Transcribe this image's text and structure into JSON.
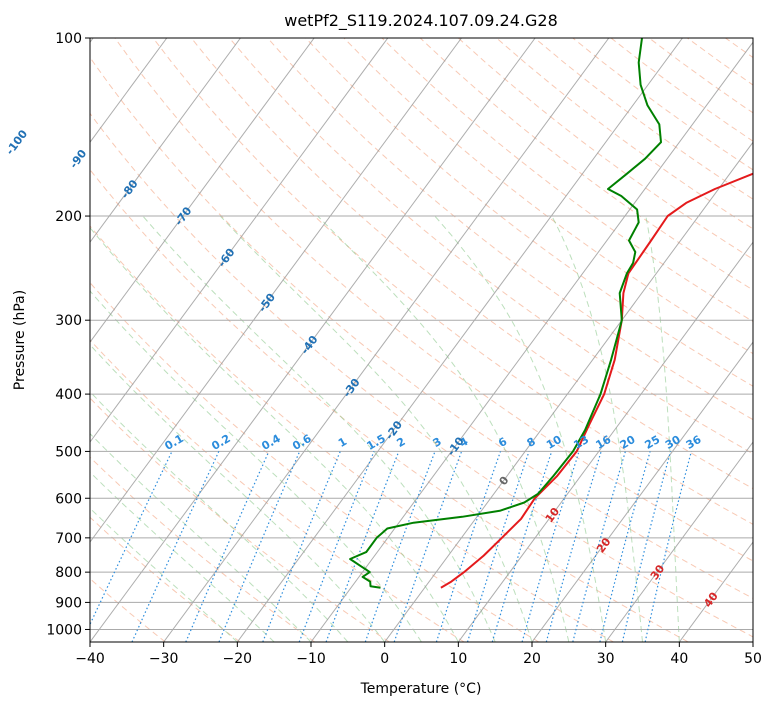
{
  "chart_data": {
    "type": "line",
    "subtype": "skew-t log-p",
    "title": "wetPf2_S119.2024.107.09.24.G28",
    "xlabel": "Temperature (°C)",
    "ylabel": "Pressure (hPa)",
    "xlim": [
      -40,
      50
    ],
    "ylim": [
      1050,
      100
    ],
    "y_scale": "log",
    "x_ticks": [
      -40,
      -30,
      -20,
      -10,
      0,
      10,
      20,
      30,
      40,
      50
    ],
    "y_ticks": [
      100,
      200,
      300,
      400,
      500,
      600,
      700,
      800,
      900,
      1000
    ],
    "grid": true,
    "colors": {
      "temperature": "#e41a1c",
      "dewpoint": "#008000",
      "isotherm": "#999999",
      "isobar": "#aaaaaa",
      "dry_adiabat": "#f4a582",
      "moist_adiabat": "#90c990",
      "mixing_ratio": "#2b8cdc",
      "isotherm_label_cold": "#2171b5",
      "isotherm_label_warm": "#d62728"
    },
    "isotherm_labels": [
      "-100",
      "-90",
      "-80",
      "-70",
      "-60",
      "-50",
      "-40",
      "-30",
      "-20",
      "-10",
      "0",
      "10",
      "20",
      "30",
      "40"
    ],
    "mixing_ratio_labels": [
      "0.1",
      "0.2",
      "0.4",
      "0.6",
      "1",
      "1.5",
      "2",
      "3",
      "4",
      "6",
      "8",
      "10",
      "13",
      "16",
      "20",
      "25",
      "30",
      "36"
    ],
    "series": [
      {
        "id": "temperature",
        "points": [
          {
            "p": 850,
            "t": 2.2
          },
          {
            "p": 830,
            "t": 3.0
          },
          {
            "p": 800,
            "t": 3.8
          },
          {
            "p": 750,
            "t": 4.8
          },
          {
            "p": 700,
            "t": 5.5
          },
          {
            "p": 650,
            "t": 6.2
          },
          {
            "p": 600,
            "t": 6.0
          },
          {
            "p": 550,
            "t": 6.8
          },
          {
            "p": 500,
            "t": 7.0
          },
          {
            "p": 450,
            "t": 6.0
          },
          {
            "p": 400,
            "t": 5.0
          },
          {
            "p": 350,
            "t": 3.0
          },
          {
            "p": 300,
            "t": 0.0
          },
          {
            "p": 270,
            "t": -2.5
          },
          {
            "p": 250,
            "t": -3.8
          },
          {
            "p": 220,
            "t": -4.0
          },
          {
            "p": 200,
            "t": -4.2
          },
          {
            "p": 190,
            "t": -3.0
          },
          {
            "p": 180,
            "t": -0.5
          },
          {
            "p": 170,
            "t": 3.0
          },
          {
            "p": 160,
            "t": 6.5
          },
          {
            "p": 150,
            "t": 9.0
          },
          {
            "p": 140,
            "t": 13.0
          },
          {
            "p": 130,
            "t": 18.5
          },
          {
            "p": 120,
            "t": 24.0
          },
          {
            "p": 110,
            "t": 28.0
          },
          {
            "p": 100,
            "t": 30.0
          }
        ]
      },
      {
        "id": "dewpoint",
        "points": [
          {
            "p": 850,
            "t": -6.0
          },
          {
            "p": 845,
            "t": -7.5
          },
          {
            "p": 830,
            "t": -8.0
          },
          {
            "p": 815,
            "t": -9.5
          },
          {
            "p": 800,
            "t": -9.0
          },
          {
            "p": 780,
            "t": -11.0
          },
          {
            "p": 760,
            "t": -13.0
          },
          {
            "p": 740,
            "t": -11.5
          },
          {
            "p": 700,
            "t": -11.5
          },
          {
            "p": 675,
            "t": -11.0
          },
          {
            "p": 660,
            "t": -8.0
          },
          {
            "p": 645,
            "t": -2.0
          },
          {
            "p": 630,
            "t": 2.5
          },
          {
            "p": 610,
            "t": 5.0
          },
          {
            "p": 590,
            "t": 6.0
          },
          {
            "p": 550,
            "t": 6.3
          },
          {
            "p": 500,
            "t": 6.5
          },
          {
            "p": 460,
            "t": 6.0
          },
          {
            "p": 400,
            "t": 4.5
          },
          {
            "p": 350,
            "t": 2.5
          },
          {
            "p": 300,
            "t": 0.0
          },
          {
            "p": 270,
            "t": -3.0
          },
          {
            "p": 250,
            "t": -4.0
          },
          {
            "p": 240,
            "t": -4.2
          },
          {
            "p": 230,
            "t": -5.0
          },
          {
            "p": 220,
            "t": -7.0
          },
          {
            "p": 205,
            "t": -7.5
          },
          {
            "p": 195,
            "t": -9.0
          },
          {
            "p": 185,
            "t": -12.5
          },
          {
            "p": 180,
            "t": -15.0
          },
          {
            "p": 170,
            "t": -14.0
          },
          {
            "p": 160,
            "t": -13.0
          },
          {
            "p": 150,
            "t": -12.5
          },
          {
            "p": 140,
            "t": -14.5
          },
          {
            "p": 130,
            "t": -18.0
          },
          {
            "p": 120,
            "t": -21.0
          },
          {
            "p": 110,
            "t": -23.5
          },
          {
            "p": 100,
            "t": -25.5
          }
        ]
      }
    ]
  }
}
